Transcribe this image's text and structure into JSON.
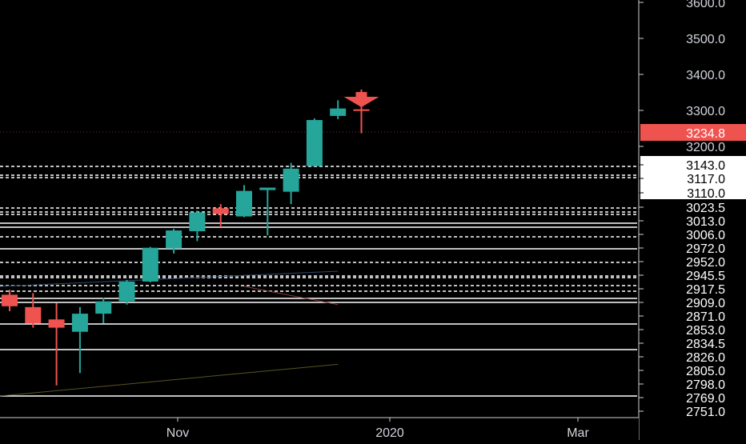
{
  "chart_data": {
    "type": "candlestick",
    "title": "",
    "price_axis": {
      "ticks": [
        "3600.0",
        "3500.0",
        "3400.0",
        "3300.0",
        "3200.0"
      ],
      "level_labels": [
        "3143.0",
        "3117.0",
        "3110.0",
        "3023.5",
        "3013.0",
        "3006.0",
        "2972.0",
        "2952.0",
        "2945.5",
        "2917.5",
        "2909.0",
        "2871.0",
        "2853.0",
        "2834.5",
        "2826.0",
        "2805.0",
        "2798.0",
        "2769.0",
        "2751.0"
      ]
    },
    "time_axis": {
      "ticks": [
        "Nov",
        "2020",
        "Mar"
      ]
    },
    "current_price": {
      "label": "3234.8",
      "value": 3234.8,
      "color": "#ef5350"
    },
    "colors": {
      "up": "#26a69a",
      "down": "#ef5350",
      "background": "#000000",
      "grid_level": "#ffffff",
      "axis_text": "#d1d4dc"
    },
    "candles": [
      {
        "o": 3020,
        "h": 3026,
        "l": 3000,
        "c": 3006
      },
      {
        "o": 3005,
        "h": 3022,
        "l": 2980,
        "c": 2985
      },
      {
        "o": 2990,
        "h": 3010,
        "l": 2910,
        "c": 2980
      },
      {
        "o": 2975,
        "h": 3005,
        "l": 2925,
        "c": 2997
      },
      {
        "o": 2997,
        "h": 3016,
        "l": 2985,
        "c": 3012
      },
      {
        "o": 3012,
        "h": 3038,
        "l": 3008,
        "c": 3036
      },
      {
        "o": 3036,
        "h": 3078,
        "l": 3035,
        "c": 3077
      },
      {
        "o": 3076,
        "h": 3100,
        "l": 3070,
        "c": 3098
      },
      {
        "o": 3097,
        "h": 3122,
        "l": 3085,
        "c": 3120
      },
      {
        "o": 3125,
        "h": 3130,
        "l": 3102,
        "c": 3118
      },
      {
        "o": 3115,
        "h": 3153,
        "l": 3114,
        "c": 3146
      },
      {
        "o": 3147,
        "h": 3150,
        "l": 3092,
        "c": 3150
      },
      {
        "o": 3145,
        "h": 3180,
        "l": 3130,
        "c": 3173
      },
      {
        "o": 3176,
        "h": 3234,
        "l": 3176,
        "c": 3232
      },
      {
        "o": 3237,
        "h": 3256,
        "l": 3233,
        "c": 3246
      },
      {
        "o": 3245,
        "h": 3269,
        "l": 3216,
        "c": 3243
      }
    ],
    "sell_signal_arrow": {
      "color": "#ef5350"
    },
    "moving_averages": [
      {
        "color": "#8a3b3b",
        "points": [
          [
            10,
            2912
          ],
          [
            14,
            3008
          ]
        ]
      },
      {
        "color": "#2f4a6a",
        "points": [
          [
            0,
            2912
          ],
          [
            14,
            2950
          ]
        ]
      },
      {
        "color": "#5a5424",
        "points": [
          [
            0,
            2767
          ],
          [
            14,
            2811
          ]
        ]
      }
    ]
  }
}
